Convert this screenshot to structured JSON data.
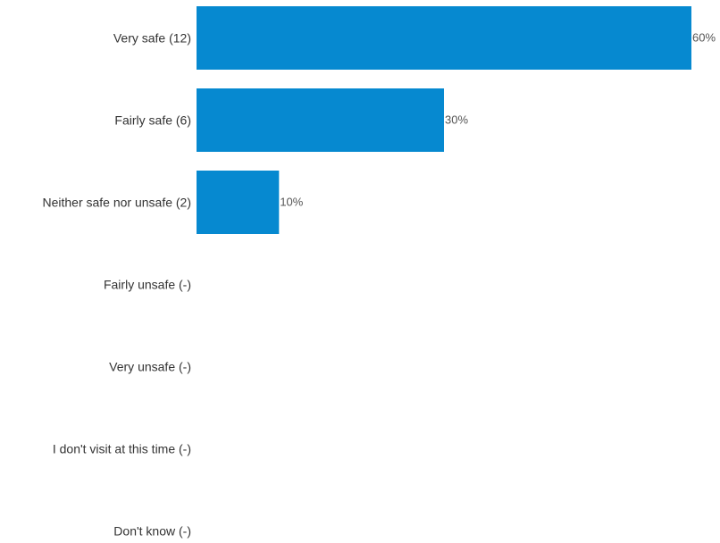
{
  "chart_data": {
    "type": "bar",
    "orientation": "horizontal",
    "categories": [
      "Very safe (12)",
      "Fairly safe (6)",
      "Neither safe nor unsafe (2)",
      "Fairly unsafe (-)",
      "Very unsafe (-)",
      "I don't visit at this time (-)",
      "Don't know (-)"
    ],
    "values": [
      60,
      30,
      10,
      0,
      0,
      0,
      0
    ],
    "data_labels": [
      "60%",
      "30%",
      "10%",
      "",
      "",
      "",
      ""
    ],
    "xlim": [
      0,
      60
    ],
    "grid": false,
    "bar_color": "#0689d0"
  }
}
